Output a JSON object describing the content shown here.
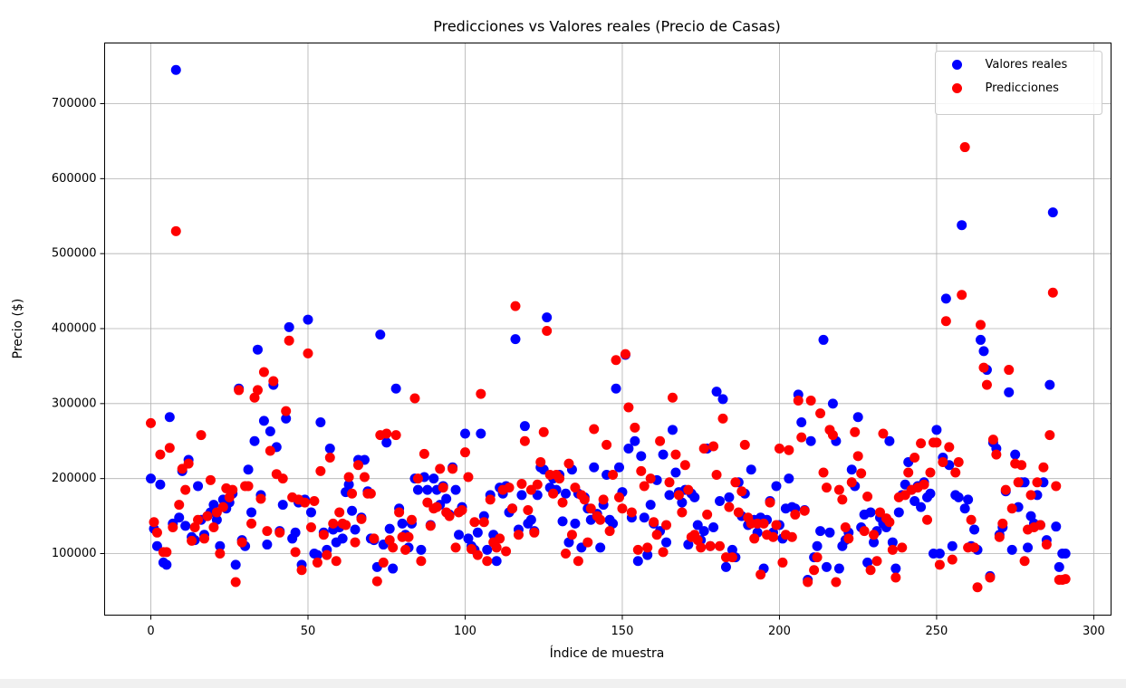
{
  "chart_data": {
    "type": "scatter",
    "title": "Predicciones vs Valores reales (Precio de Casas)",
    "x_label": "Índice de muestra",
    "y_label": "Precio ($)",
    "xlim": [
      -14.7,
      305.5
    ],
    "ylim": [
      17900,
      780900
    ],
    "xticks": [
      0,
      50,
      100,
      150,
      200,
      250,
      300
    ],
    "yticks": [
      100000,
      200000,
      300000,
      400000,
      500000,
      600000,
      700000
    ],
    "grid": true,
    "legend": "upper right",
    "series": [
      {
        "name": "Valores reales",
        "color": "blue",
        "values": [
          200000,
          133000,
          110000,
          192000,
          88000,
          85000,
          282000,
          140000,
          745000,
          148000,
          210000,
          137000,
          225000,
          122000,
          118000,
          190000,
          145000,
          125000,
          150000,
          155000,
          165000,
          145000,
          110000,
          172000,
          160000,
          168000,
          180000,
          85000,
          320000,
          118000,
          110000,
          212000,
          155000,
          250000,
          372000,
          178000,
          277000,
          112000,
          263000,
          325000,
          242000,
          130000,
          165000,
          280000,
          402000,
          120000,
          128000,
          168000,
          85000,
          172000,
          412000,
          155000,
          100000,
          98000,
          275000,
          128000,
          105000,
          240000,
          132000,
          115000,
          135000,
          120000,
          182000,
          192000,
          157000,
          132000,
          225000,
          148000,
          225000,
          183000,
          120000,
          118000,
          82000,
          392000,
          112000,
          248000,
          133000,
          80000,
          320000,
          160000,
          140000,
          125000,
          108000,
          140000,
          200000,
          185000,
          105000,
          202000,
          185000,
          138000,
          200000,
          185000,
          165000,
          190000,
          173000,
          152000,
          215000,
          185000,
          125000,
          162000,
          260000,
          120000,
          110000,
          105000,
          128000,
          260000,
          150000,
          105000,
          178000,
          125000,
          90000,
          188000,
          180000,
          190000,
          155000,
          160000,
          386000,
          132000,
          178000,
          270000,
          140000,
          145000,
          130000,
          178000,
          215000,
          212000,
          415000,
          188000,
          200000,
          185000,
          205000,
          143000,
          180000,
          115000,
          212000,
          140000,
          180000,
          108000,
          175000,
          160000,
          145000,
          215000,
          153000,
          108000,
          165000,
          205000,
          145000,
          140000,
          320000,
          215000,
          182000,
          365000,
          240000,
          148000,
          250000,
          90000,
          230000,
          148000,
          98000,
          165000,
          140000,
          198000,
          130000,
          232000,
          115000,
          178000,
          265000,
          208000,
          182000,
          168000,
          185000,
          112000,
          180000,
          175000,
          138000,
          118000,
          130000,
          240000,
          110000,
          135000,
          316000,
          170000,
          306000,
          82000,
          175000,
          105000,
          95000,
          195000,
          150000,
          180000,
          138000,
          212000,
          145000,
          128000,
          148000,
          80000,
          145000,
          170000,
          128000,
          190000,
          138000,
          120000,
          160000,
          200000,
          162000,
          160000,
          312000,
          275000,
          158000,
          65000,
          250000,
          95000,
          110000,
          130000,
          385000,
          82000,
          128000,
          300000,
          250000,
          80000,
          110000,
          118000,
          128000,
          212000,
          190000,
          282000,
          135000,
          152000,
          88000,
          155000,
          115000,
          130000,
          148000,
          140000,
          135000,
          250000,
          115000,
          80000,
          155000,
          178000,
          192000,
          222000,
          185000,
          170000,
          190000,
          162000,
          195000,
          175000,
          180000,
          100000,
          265000,
          100000,
          228000,
          440000,
          218000,
          110000,
          178000,
          175000,
          538000,
          160000,
          172000,
          110000,
          132000,
          105000,
          385000,
          370000,
          345000,
          70000,
          248000,
          240000,
          125000,
          135000,
          183000,
          315000,
          105000,
          232000,
          162000,
          195000,
          195000,
          108000,
          150000,
          140000,
          178000,
          138000,
          195000,
          118000,
          325000,
          555000,
          136000,
          82000,
          100000,
          100000
        ]
      },
      {
        "name": "Predicciones",
        "color": "red",
        "values": [
          274000,
          142000,
          128000,
          232000,
          102000,
          102000,
          241000,
          135000,
          530000,
          165000,
          213000,
          185000,
          220000,
          117000,
          135000,
          145000,
          258000,
          120000,
          150000,
          198000,
          135000,
          155000,
          100000,
          162000,
          187000,
          175000,
          185000,
          62000,
          318000,
          115000,
          190000,
          190000,
          140000,
          308000,
          318000,
          173000,
          342000,
          130000,
          237000,
          330000,
          206000,
          128000,
          200000,
          290000,
          384000,
          175000,
          102000,
          172000,
          78000,
          168000,
          367000,
          135000,
          170000,
          88000,
          210000,
          125000,
          98000,
          228000,
          140000,
          90000,
          155000,
          140000,
          138000,
          202000,
          180000,
          115000,
          218000,
          146000,
          202000,
          180000,
          180000,
          120000,
          63000,
          258000,
          88000,
          260000,
          118000,
          108000,
          258000,
          155000,
          122000,
          105000,
          122000,
          145000,
          307000,
          200000,
          90000,
          233000,
          168000,
          137000,
          160000,
          162000,
          213000,
          188000,
          155000,
          150000,
          213000,
          108000,
          155000,
          158000,
          235000,
          202000,
          106000,
          142000,
          98000,
          313000,
          142000,
          90000,
          172000,
          115000,
          108000,
          120000,
          185000,
          103000,
          188000,
          160000,
          430000,
          125000,
          193000,
          250000,
          158000,
          185000,
          128000,
          192000,
          222000,
          262000,
          397000,
          205000,
          180000,
          205000,
          200000,
          168000,
          100000,
          220000,
          125000,
          188000,
          90000,
          178000,
          172000,
          115000,
          160000,
          266000,
          150000,
          145000,
          172000,
          245000,
          130000,
          205000,
          358000,
          175000,
          160000,
          366000,
          295000,
          155000,
          268000,
          105000,
          210000,
          190000,
          108000,
          200000,
          142000,
          125000,
          250000,
          102000,
          138000,
          195000,
          308000,
          232000,
          178000,
          155000,
          218000,
          185000,
          122000,
          125000,
          118000,
          108000,
          240000,
          152000,
          110000,
          243000,
          205000,
          110000,
          280000,
          95000,
          162000,
          95000,
          195000,
          155000,
          183000,
          245000,
          148000,
          140000,
          120000,
          140000,
          72000,
          140000,
          125000,
          168000,
          122000,
          138000,
          240000,
          88000,
          125000,
          238000,
          122000,
          152000,
          304000,
          255000,
          157000,
          62000,
          304000,
          78000,
          95000,
          287000,
          208000,
          188000,
          265000,
          258000,
          62000,
          185000,
          172000,
          135000,
          120000,
          195000,
          262000,
          230000,
          207000,
          130000,
          176000,
          78000,
          125000,
          90000,
          155000,
          260000,
          147000,
          142000,
          105000,
          68000,
          175000,
          108000,
          178000,
          208000,
          185000,
          228000,
          188000,
          247000,
          192000,
          145000,
          208000,
          248000,
          248000,
          85000,
          222000,
          410000,
          242000,
          92000,
          208000,
          222000,
          445000,
          642000,
          108000,
          145000,
          108000,
          55000,
          405000,
          348000,
          325000,
          68000,
          252000,
          232000,
          122000,
          140000,
          185000,
          345000,
          160000,
          220000,
          195000,
          218000,
          90000,
          132000,
          178000,
          135000,
          195000,
          138000,
          215000,
          112000,
          258000,
          448000,
          190000,
          65000,
          65000,
          66000
        ]
      }
    ]
  }
}
